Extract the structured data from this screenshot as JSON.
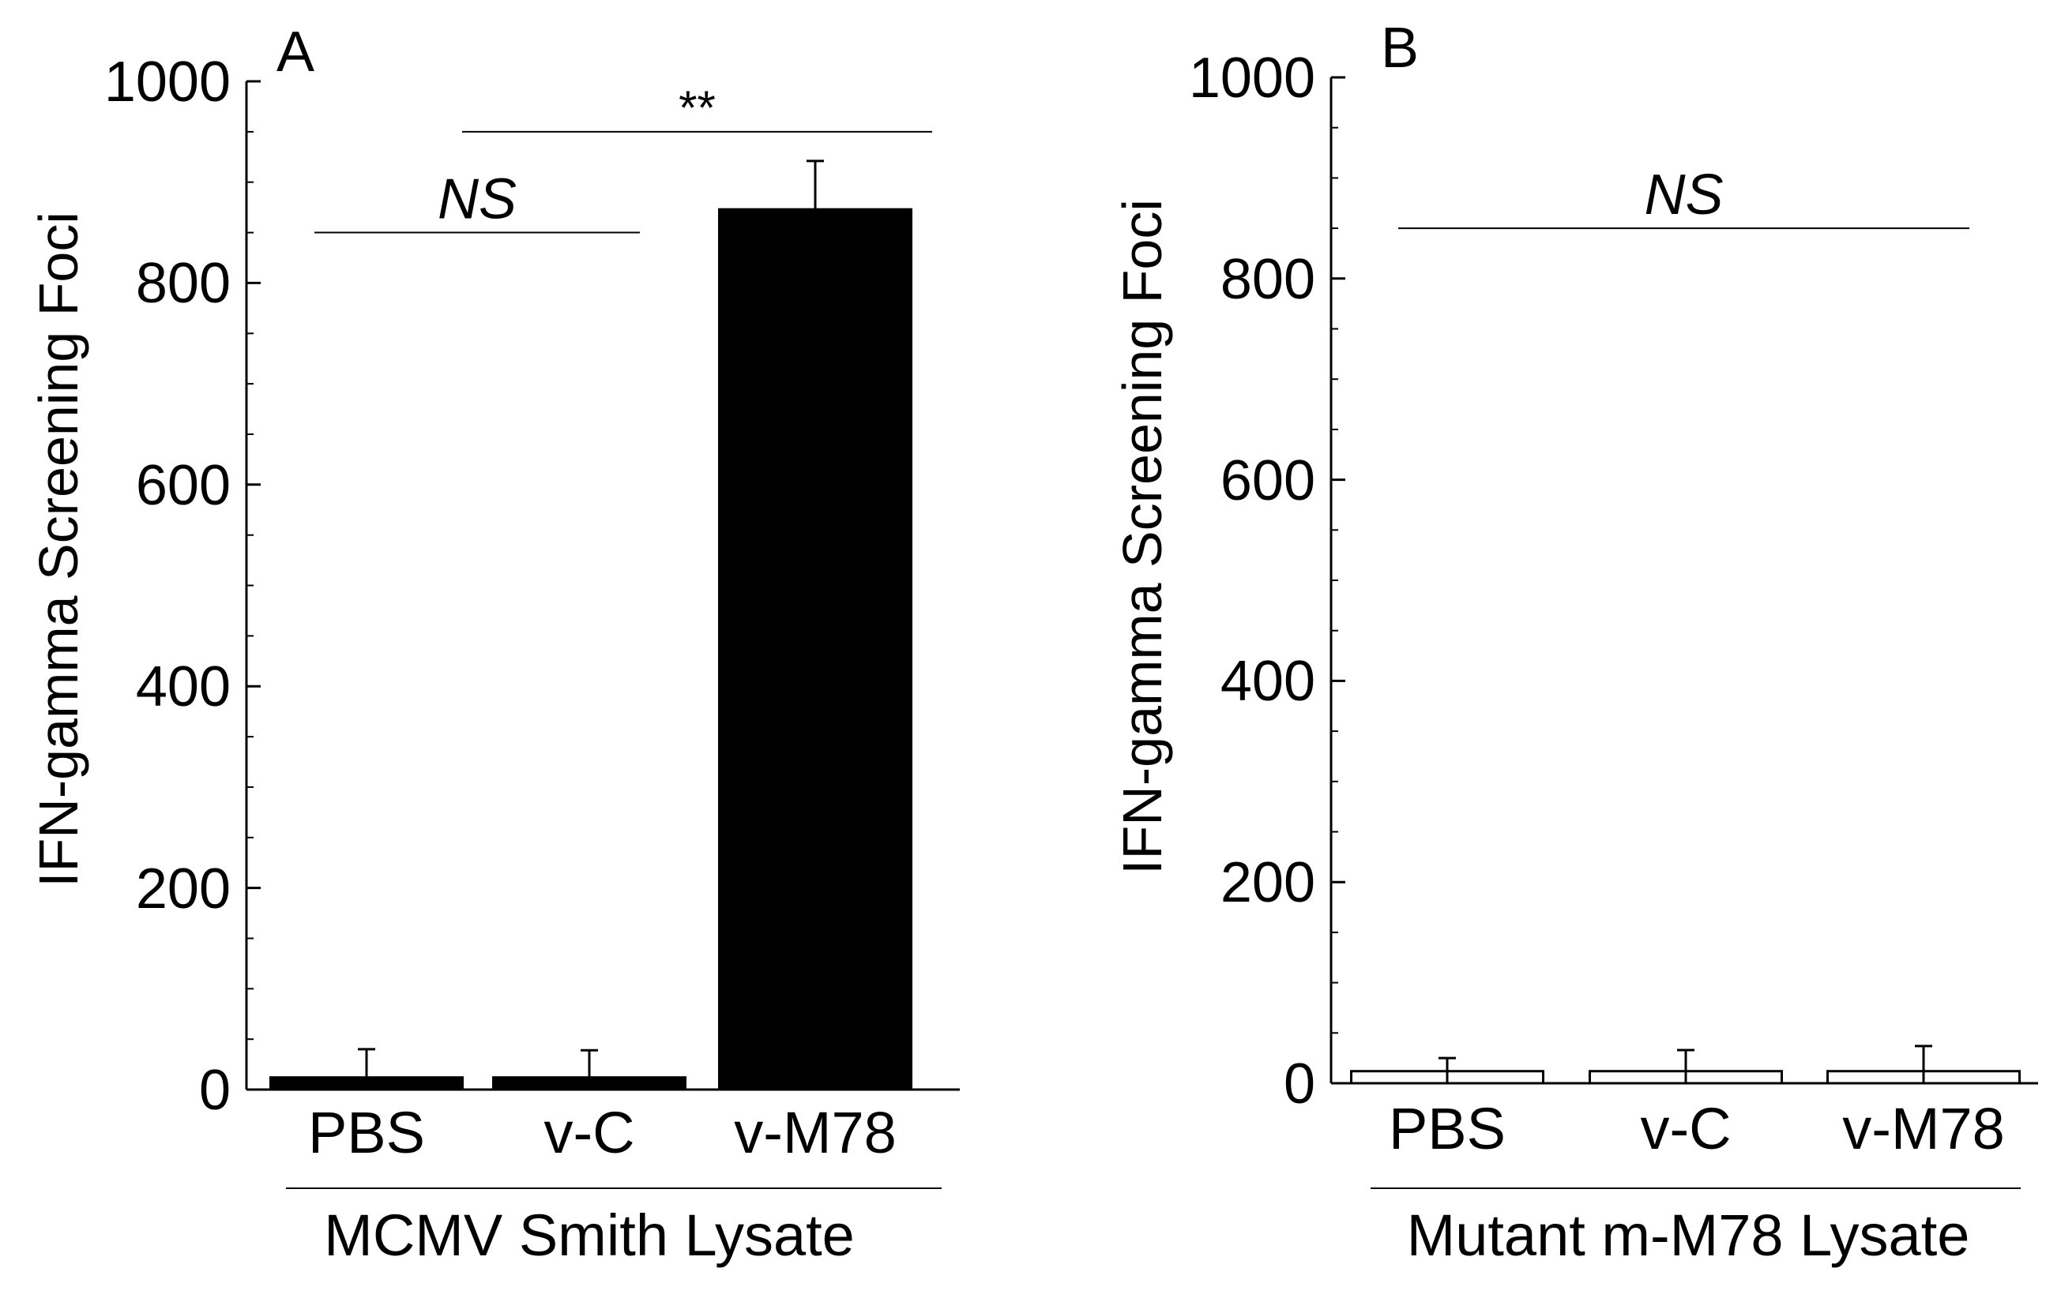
{
  "chart_data": [
    {
      "type": "bar",
      "panel_label": "A",
      "categories": [
        "PBS",
        "v-C",
        "v-M78"
      ],
      "values": [
        12,
        12,
        873
      ],
      "errors": [
        28,
        27,
        48
      ],
      "bar_color": "#000000",
      "ylabel": "IFN-gamma Screening Foci",
      "xlabel": "MCMV Smith Lysate",
      "ylim": [
        0,
        1000
      ],
      "yticks": [
        "0",
        "200",
        "400",
        "600",
        "800",
        "1000"
      ],
      "annotations": [
        {
          "text": "NS",
          "from": 0,
          "to": 1,
          "italic": true,
          "y": 850
        },
        {
          "text": "**",
          "from": 1,
          "to": 2,
          "italic": false,
          "y": 950
        }
      ]
    },
    {
      "type": "bar",
      "panel_label": "B",
      "categories": [
        "PBS",
        "v-C",
        "v-M78"
      ],
      "values": [
        12,
        12,
        12
      ],
      "errors": [
        13,
        21,
        25
      ],
      "bar_color": "#ffffff",
      "ylabel": "IFN-gamma Screening Foci",
      "xlabel": "Mutant m-M78 Lysate",
      "ylim": [
        0,
        1000
      ],
      "yticks": [
        "0",
        "200",
        "400",
        "600",
        "800",
        "1000"
      ],
      "annotations": [
        {
          "text": "NS",
          "from": 0,
          "to": 2,
          "italic": true,
          "y": 850
        }
      ]
    }
  ]
}
